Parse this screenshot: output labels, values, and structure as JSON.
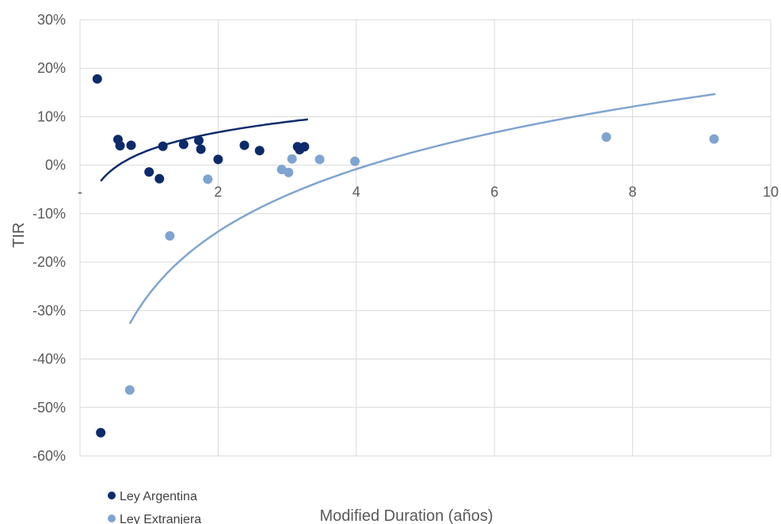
{
  "chart_data": {
    "type": "scatter",
    "xlabel": "Modified Duration (años)",
    "ylabel": "TIR",
    "xlim": [
      0,
      10
    ],
    "ylim": [
      -60,
      30
    ],
    "x_ticks": [
      0,
      2,
      4,
      6,
      8,
      10
    ],
    "x_tick_labels": [
      "-",
      "2",
      "4",
      "6",
      "8",
      "10"
    ],
    "y_ticks": [
      -60,
      -50,
      -40,
      -30,
      -20,
      -10,
      0,
      10,
      20,
      30
    ],
    "y_tick_labels": [
      "-60%",
      "-50%",
      "-40%",
      "-30%",
      "-20%",
      "-10%",
      "0%",
      "10%",
      "20%",
      "30%"
    ],
    "grid": true,
    "legend_position": "bottom-left",
    "series": [
      {
        "name": "Ley Argentina",
        "color": "#0d2b6b",
        "points": [
          [
            0.25,
            17.8
          ],
          [
            0.3,
            -55.2
          ],
          [
            0.55,
            5.3
          ],
          [
            0.58,
            4.0
          ],
          [
            0.74,
            4.1
          ],
          [
            1.0,
            -1.4
          ],
          [
            1.15,
            -2.8
          ],
          [
            1.2,
            3.9
          ],
          [
            1.5,
            4.3
          ],
          [
            1.72,
            5.1
          ],
          [
            1.75,
            3.3
          ],
          [
            2.0,
            1.2
          ],
          [
            2.38,
            4.1
          ],
          [
            2.6,
            3.0
          ],
          [
            3.15,
            3.8
          ],
          [
            3.18,
            3.2
          ],
          [
            3.25,
            3.8
          ]
        ],
        "trend": {
          "type": "log",
          "a": 3.11,
          "b": 5.31,
          "x_range": [
            0.3,
            3.3
          ]
        }
      },
      {
        "name": "Ley Extranjera",
        "color": "#7fa4d0",
        "points": [
          [
            0.72,
            -46.4
          ],
          [
            1.3,
            -14.6
          ],
          [
            1.85,
            -2.9
          ],
          [
            2.92,
            -0.9
          ],
          [
            3.02,
            -1.5
          ],
          [
            3.07,
            1.3
          ],
          [
            3.47,
            1.2
          ],
          [
            3.98,
            0.8
          ],
          [
            7.62,
            5.8
          ],
          [
            9.18,
            5.4
          ]
        ],
        "trend": {
          "type": "log",
          "a": -26.6,
          "b": 18.6,
          "x_range": [
            0.72,
            9.2
          ]
        }
      }
    ]
  }
}
